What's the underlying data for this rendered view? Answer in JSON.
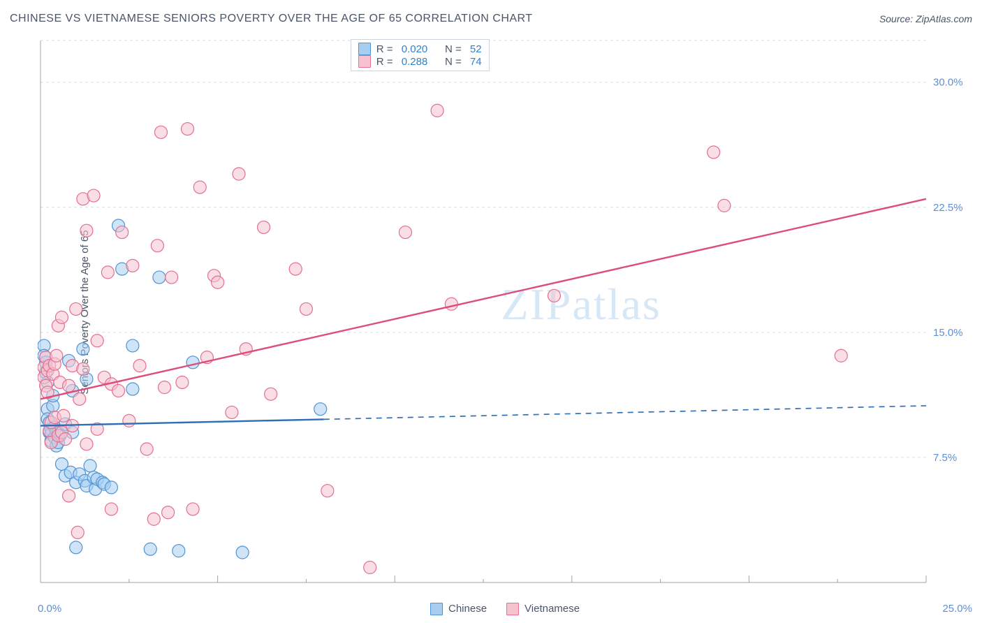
{
  "title": "CHINESE VS VIETNAMESE SENIORS POVERTY OVER THE AGE OF 65 CORRELATION CHART",
  "source_prefix": "Source: ",
  "source_name": "ZipAtlas.com",
  "y_axis_label": "Seniors Poverty Over the Age of 65",
  "watermark": "ZIPatlas",
  "chart": {
    "type": "scatter-correlation",
    "background_color": "#ffffff",
    "grid_color": "#d9dde2",
    "grid_dash": "4 4",
    "axis_color": "#9aa4b2",
    "tick_font_color": "#5b8fd6",
    "xlim": [
      0.0,
      25.0
    ],
    "ylim": [
      0.0,
      32.5
    ],
    "x_tick_major_step": 5.0,
    "x_tick_minor_step": 2.5,
    "x_labels": {
      "min": "0.0%",
      "max": "25.0%"
    },
    "y_ticks": [
      {
        "v": 7.5,
        "label": "7.5%"
      },
      {
        "v": 15.0,
        "label": "15.0%"
      },
      {
        "v": 22.5,
        "label": "22.5%"
      },
      {
        "v": 30.0,
        "label": "30.0%"
      }
    ],
    "marker_radius": 9,
    "marker_opacity": 0.55,
    "marker_stroke_width": 1.2,
    "line_width": 2.4,
    "legend_box_border": "#cbd5e0"
  },
  "series": [
    {
      "key": "chinese",
      "label": "Chinese",
      "fill": "#a8cdf0",
      "stroke": "#4f94d4",
      "line_color": "#2f6fb5",
      "R": "0.020",
      "N": "52",
      "trend": {
        "y_at_xmin": 9.4,
        "y_at_xmax": 10.6,
        "solid_until_x": 8.0
      },
      "points": [
        [
          0.1,
          14.2
        ],
        [
          0.1,
          13.6
        ],
        [
          0.15,
          12.6
        ],
        [
          0.15,
          13.2
        ],
        [
          0.2,
          12.0
        ],
        [
          0.2,
          10.4
        ],
        [
          0.2,
          9.8
        ],
        [
          0.25,
          9.6
        ],
        [
          0.25,
          9.0
        ],
        [
          0.3,
          9.2
        ],
        [
          0.3,
          8.9
        ],
        [
          0.3,
          8.5
        ],
        [
          0.35,
          10.6
        ],
        [
          0.35,
          11.2
        ],
        [
          0.4,
          9.3
        ],
        [
          0.4,
          8.7
        ],
        [
          0.45,
          9.1
        ],
        [
          0.45,
          8.2
        ],
        [
          0.5,
          9.0
        ],
        [
          0.5,
          8.4
        ],
        [
          0.55,
          8.8
        ],
        [
          0.6,
          7.1
        ],
        [
          0.7,
          6.4
        ],
        [
          0.7,
          9.5
        ],
        [
          0.8,
          13.3
        ],
        [
          0.85,
          6.6
        ],
        [
          0.9,
          11.5
        ],
        [
          0.9,
          9.0
        ],
        [
          1.0,
          6.0
        ],
        [
          1.0,
          2.1
        ],
        [
          1.1,
          6.5
        ],
        [
          1.2,
          14.0
        ],
        [
          1.25,
          6.1
        ],
        [
          1.3,
          12.2
        ],
        [
          1.3,
          5.8
        ],
        [
          1.4,
          7.0
        ],
        [
          1.5,
          6.3
        ],
        [
          1.55,
          5.6
        ],
        [
          1.6,
          6.2
        ],
        [
          1.75,
          6.0
        ],
        [
          1.8,
          5.9
        ],
        [
          2.0,
          5.7
        ],
        [
          2.2,
          21.4
        ],
        [
          2.3,
          18.8
        ],
        [
          2.6,
          14.2
        ],
        [
          2.6,
          11.6
        ],
        [
          3.1,
          2.0
        ],
        [
          3.35,
          18.3
        ],
        [
          3.9,
          1.9
        ],
        [
          4.3,
          13.2
        ],
        [
          5.7,
          1.8
        ],
        [
          7.9,
          10.4
        ]
      ]
    },
    {
      "key": "vietnamese",
      "label": "Vietnamese",
      "fill": "#f6c2cf",
      "stroke": "#e46f8f",
      "line_color": "#dd4d7a",
      "R": "0.288",
      "N": "74",
      "trend": {
        "y_at_xmin": 11.0,
        "y_at_xmax": 23.0,
        "solid_until_x": 25.0
      },
      "points": [
        [
          0.1,
          12.9
        ],
        [
          0.1,
          12.3
        ],
        [
          0.15,
          13.5
        ],
        [
          0.15,
          11.8
        ],
        [
          0.2,
          12.7
        ],
        [
          0.2,
          11.4
        ],
        [
          0.25,
          9.1
        ],
        [
          0.25,
          13.0
        ],
        [
          0.3,
          9.6
        ],
        [
          0.3,
          8.4
        ],
        [
          0.35,
          12.5
        ],
        [
          0.4,
          13.1
        ],
        [
          0.4,
          9.9
        ],
        [
          0.45,
          13.6
        ],
        [
          0.5,
          8.8
        ],
        [
          0.5,
          15.4
        ],
        [
          0.55,
          12.0
        ],
        [
          0.6,
          9.0
        ],
        [
          0.6,
          15.9
        ],
        [
          0.65,
          10.0
        ],
        [
          0.7,
          8.6
        ],
        [
          0.8,
          5.2
        ],
        [
          0.8,
          11.8
        ],
        [
          0.9,
          9.4
        ],
        [
          0.9,
          13.0
        ],
        [
          1.0,
          16.4
        ],
        [
          1.05,
          3.0
        ],
        [
          1.1,
          11.0
        ],
        [
          1.2,
          23.0
        ],
        [
          1.2,
          12.8
        ],
        [
          1.3,
          8.3
        ],
        [
          1.3,
          21.1
        ],
        [
          1.5,
          23.2
        ],
        [
          1.6,
          9.2
        ],
        [
          1.6,
          14.5
        ],
        [
          1.8,
          12.3
        ],
        [
          1.9,
          18.6
        ],
        [
          2.0,
          11.9
        ],
        [
          2.0,
          4.4
        ],
        [
          2.2,
          11.5
        ],
        [
          2.3,
          21.0
        ],
        [
          2.5,
          9.7
        ],
        [
          2.6,
          19.0
        ],
        [
          2.8,
          13.0
        ],
        [
          3.0,
          8.0
        ],
        [
          3.2,
          3.8
        ],
        [
          3.3,
          20.2
        ],
        [
          3.4,
          27.0
        ],
        [
          3.5,
          11.7
        ],
        [
          3.6,
          4.2
        ],
        [
          3.7,
          18.3
        ],
        [
          4.0,
          12.0
        ],
        [
          4.15,
          27.2
        ],
        [
          4.3,
          4.4
        ],
        [
          4.5,
          23.7
        ],
        [
          4.7,
          13.5
        ],
        [
          4.9,
          18.4
        ],
        [
          5.0,
          18.0
        ],
        [
          5.4,
          10.2
        ],
        [
          5.6,
          24.5
        ],
        [
          5.8,
          14.0
        ],
        [
          6.3,
          21.3
        ],
        [
          6.5,
          11.3
        ],
        [
          7.2,
          18.8
        ],
        [
          7.5,
          16.4
        ],
        [
          8.1,
          5.5
        ],
        [
          9.3,
          0.9
        ],
        [
          10.3,
          21.0
        ],
        [
          11.2,
          28.3
        ],
        [
          11.6,
          16.7
        ],
        [
          14.5,
          17.2
        ],
        [
          19.0,
          25.8
        ],
        [
          19.3,
          22.6
        ],
        [
          22.6,
          13.6
        ]
      ]
    }
  ],
  "legend_labels": {
    "R_prefix": "R = ",
    "N_prefix": "N = "
  }
}
